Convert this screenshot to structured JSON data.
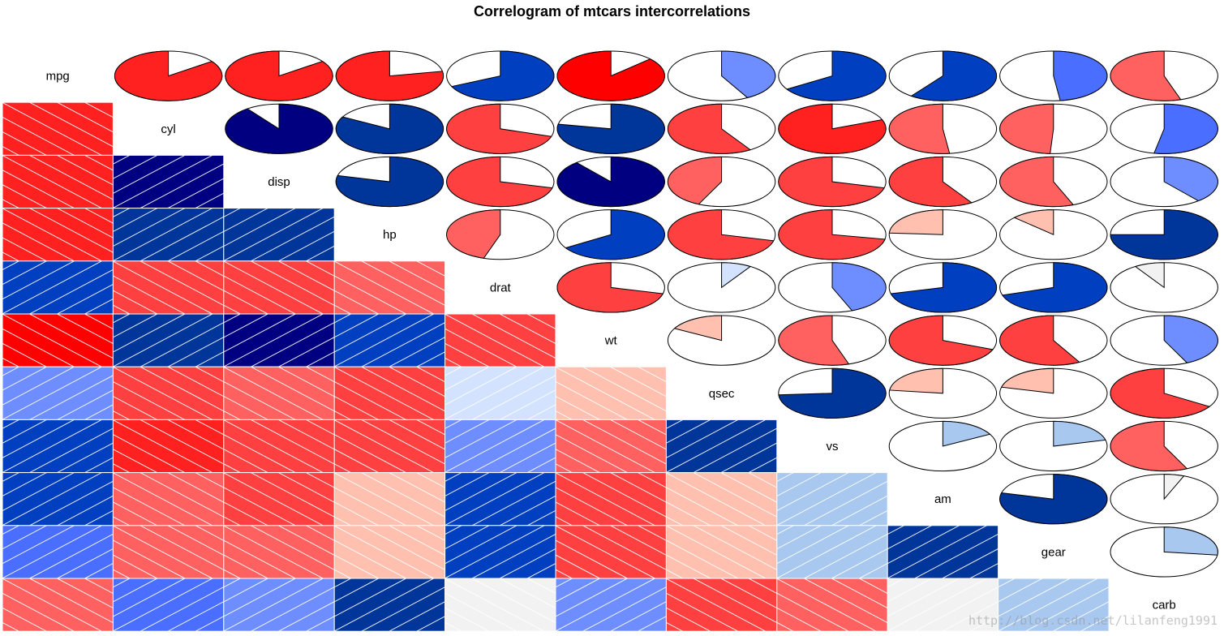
{
  "chart_data": {
    "type": "heatmap",
    "title": "Correlogram of mtcars intercorrelations",
    "variables": [
      "mpg",
      "cyl",
      "disp",
      "hp",
      "drat",
      "wt",
      "qsec",
      "vs",
      "am",
      "gear",
      "carb"
    ],
    "lower_panel": "shade",
    "upper_panel": "pie",
    "diagonal_panel": "variable names",
    "correlations": [
      [
        1.0,
        -0.85,
        -0.85,
        -0.78,
        0.68,
        -0.87,
        0.42,
        0.66,
        0.6,
        0.48,
        -0.55
      ],
      [
        -0.85,
        1.0,
        0.9,
        0.83,
        -0.7,
        0.78,
        -0.59,
        -0.81,
        -0.52,
        -0.49,
        0.53
      ],
      [
        -0.85,
        0.9,
        1.0,
        0.79,
        -0.71,
        0.89,
        -0.43,
        -0.71,
        -0.59,
        -0.56,
        0.39
      ],
      [
        -0.78,
        0.83,
        0.79,
        1.0,
        -0.45,
        0.66,
        -0.71,
        -0.72,
        -0.24,
        -0.13,
        0.75
      ],
      [
        0.68,
        -0.7,
        -0.71,
        -0.45,
        1.0,
        -0.71,
        0.09,
        0.44,
        0.71,
        0.7,
        -0.09
      ],
      [
        -0.87,
        0.78,
        0.89,
        0.66,
        -0.71,
        1.0,
        -0.17,
        -0.55,
        -0.69,
        -0.58,
        0.43
      ],
      [
        0.42,
        -0.59,
        -0.43,
        -0.71,
        0.09,
        -0.17,
        1.0,
        0.74,
        -0.23,
        -0.21,
        -0.66
      ],
      [
        0.66,
        -0.81,
        -0.71,
        -0.72,
        0.44,
        -0.55,
        0.74,
        1.0,
        0.17,
        0.21,
        -0.57
      ],
      [
        0.6,
        -0.52,
        -0.59,
        -0.24,
        0.71,
        -0.69,
        -0.23,
        0.17,
        1.0,
        0.79,
        0.06
      ],
      [
        0.48,
        -0.49,
        -0.56,
        -0.13,
        0.7,
        -0.58,
        -0.21,
        0.21,
        0.79,
        1.0,
        0.27
      ],
      [
        -0.55,
        0.53,
        0.39,
        0.75,
        -0.09,
        0.43,
        -0.66,
        -0.57,
        0.06,
        0.27,
        1.0
      ]
    ],
    "color_scale": {
      "negative": [
        "#FF0000",
        "#FF2020",
        "#FF4040",
        "#FF6060",
        "#FFC0B0",
        "#F2F2F2"
      ],
      "positive": [
        "#F2F2F2",
        "#D2E2FF",
        "#A8C8F0",
        "#6E8EFF",
        "#4A6EFF",
        "#0040C0",
        "#00359A",
        "#000080"
      ]
    },
    "grid": false,
    "legend": "none"
  },
  "watermark": "http://blog.csdn.net/lilanfeng1991"
}
